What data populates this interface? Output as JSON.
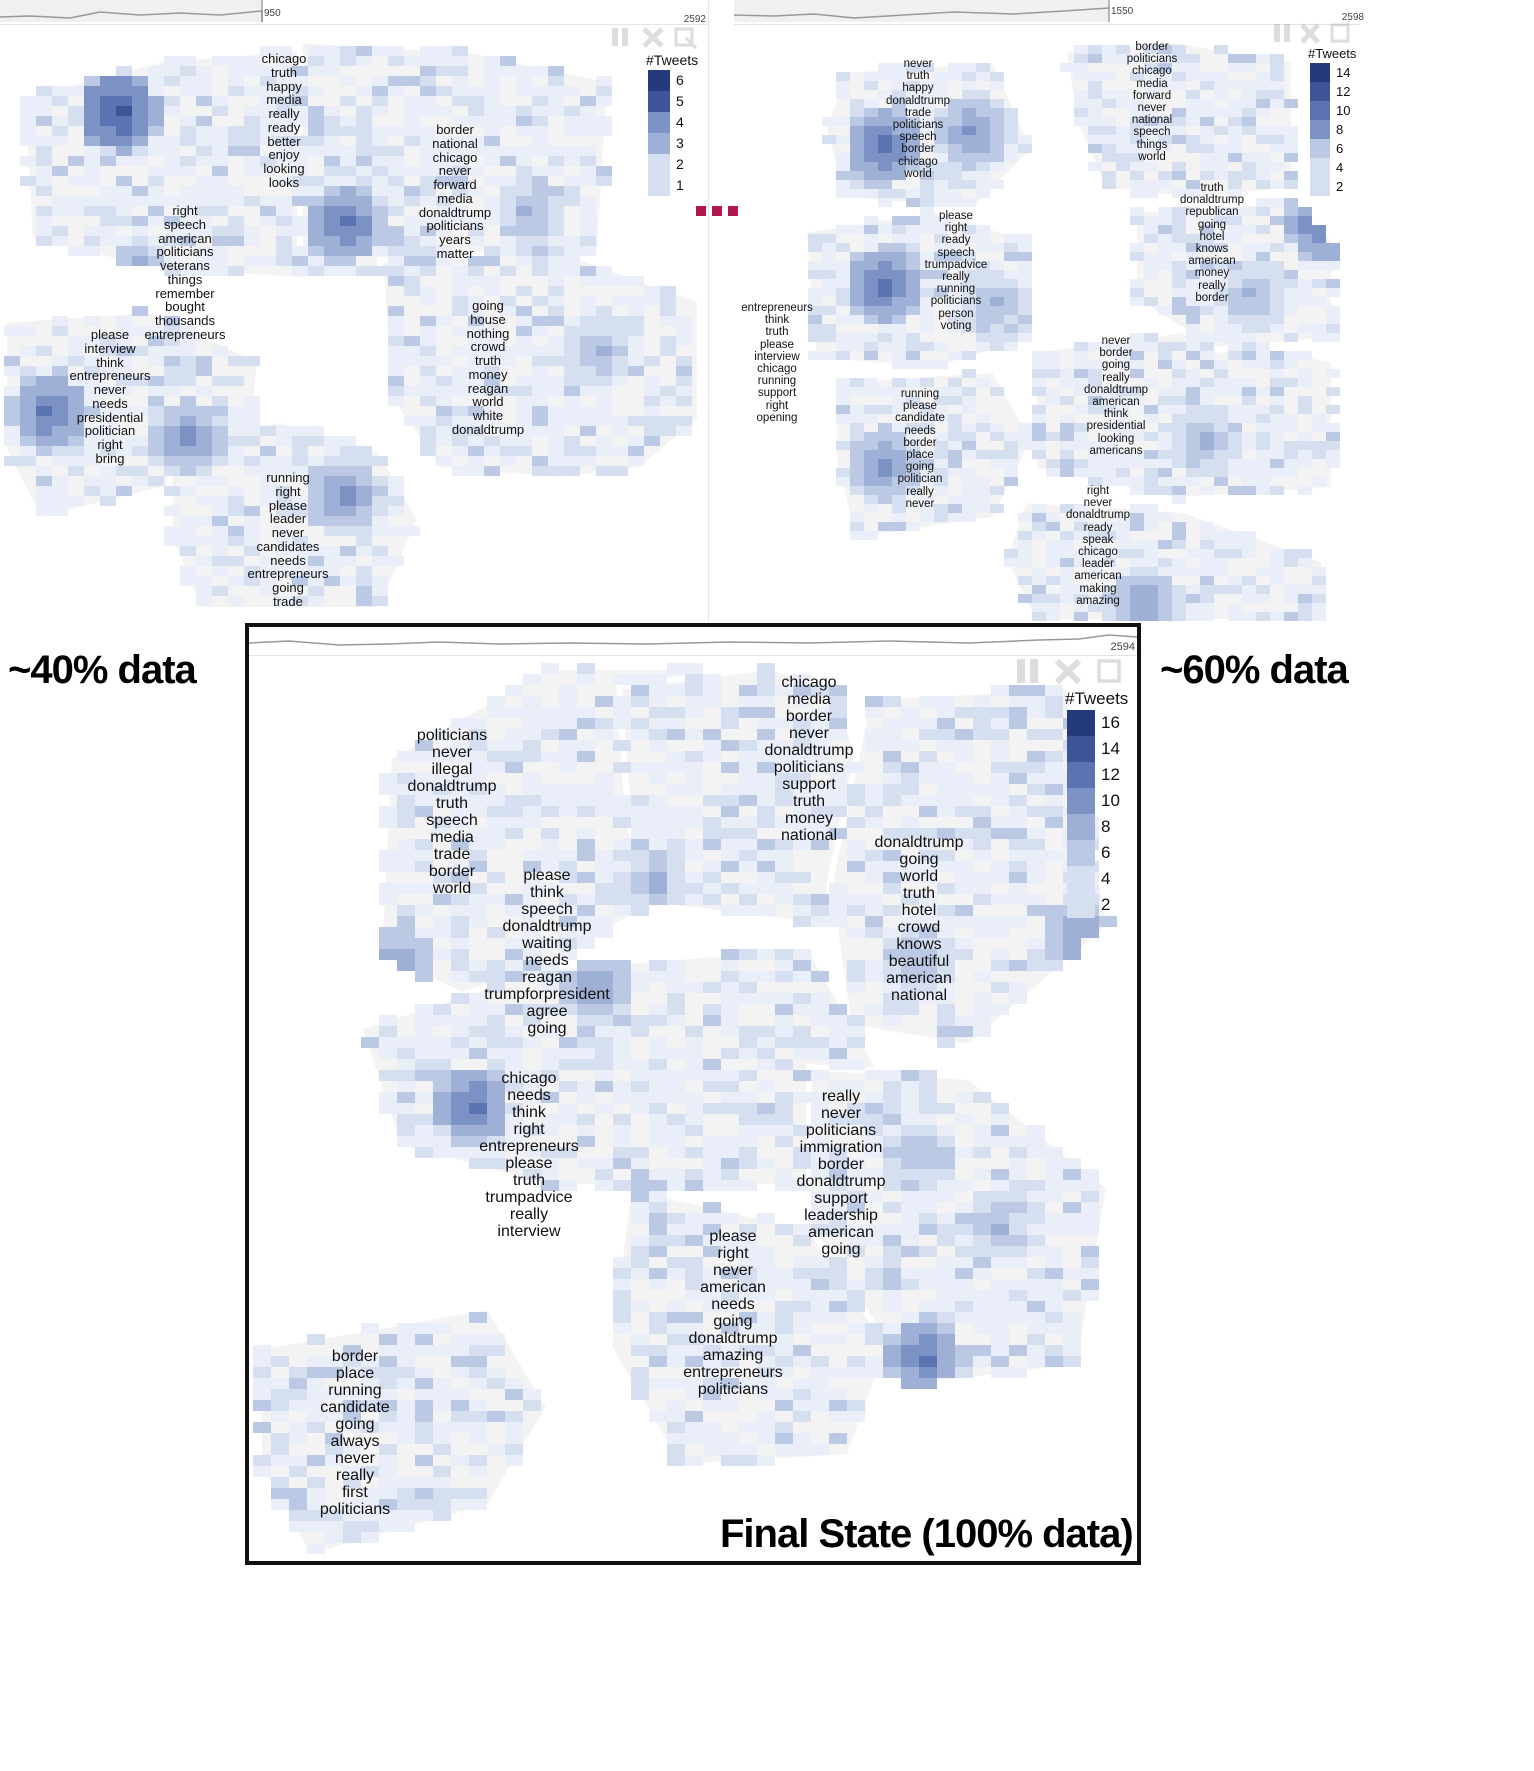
{
  "charts": [
    {
      "id": "p40",
      "timeline": {
        "marker": "950",
        "max": "2592"
      },
      "legend": {
        "title": "#Tweets",
        "values": [
          6,
          5,
          4,
          3,
          2,
          1
        ]
      },
      "clusters": [
        {
          "words": [
            "chicago",
            "truth",
            "happy",
            "media",
            "really",
            "ready",
            "better",
            "enjoy",
            "looking",
            "looks"
          ]
        },
        {
          "words": [
            "border",
            "national",
            "chicago",
            "never",
            "forward",
            "media",
            "donaldtrump",
            "politicians",
            "years",
            "matter"
          ]
        },
        {
          "words": [
            "right",
            "speech",
            "american",
            "politicians",
            "veterans",
            "things",
            "remember",
            "bought",
            "thousands",
            "entrepreneurs"
          ]
        },
        {
          "words": [
            "please",
            "interview",
            "think",
            "entrepreneurs",
            "never",
            "needs",
            "presidential",
            "politician",
            "right",
            "bring"
          ]
        },
        {
          "words": [
            "going",
            "house",
            "nothing",
            "crowd",
            "truth",
            "money",
            "reagan",
            "world",
            "white",
            "donaldtrump"
          ]
        },
        {
          "words": [
            "running",
            "right",
            "please",
            "leader",
            "never",
            "candidates",
            "needs",
            "entrepreneurs",
            "going",
            "trade"
          ]
        }
      ]
    },
    {
      "id": "p60",
      "timeline": {
        "marker": "1550",
        "max": "2598"
      },
      "legend": {
        "title": "#Tweets",
        "values": [
          14,
          12,
          10,
          8,
          6,
          4,
          2
        ]
      },
      "clusters": [
        {
          "words": [
            "never",
            "truth",
            "happy",
            "donaldtrump",
            "trade",
            "politicians",
            "speech",
            "border",
            "chicago",
            "world"
          ]
        },
        {
          "words": [
            "border",
            "politicians",
            "chicago",
            "media",
            "forward",
            "never",
            "national",
            "speech",
            "things",
            "world"
          ]
        },
        {
          "words": [
            "truth",
            "donaldtrump",
            "republican",
            "going",
            "hotel",
            "knows",
            "american",
            "money",
            "really",
            "border"
          ]
        },
        {
          "words": [
            "please",
            "right",
            "ready",
            "speech",
            "trumpadvice",
            "really",
            "running",
            "politicians",
            "person",
            "voting"
          ]
        },
        {
          "words": [
            "entrepreneurs",
            "think",
            "truth",
            "please",
            "interview",
            "chicago",
            "running",
            "support",
            "right",
            "opening"
          ]
        },
        {
          "words": [
            "running",
            "please",
            "candidate",
            "needs",
            "border",
            "place",
            "going",
            "politician",
            "really",
            "never"
          ]
        },
        {
          "words": [
            "never",
            "border",
            "going",
            "really",
            "donaldtrump",
            "american",
            "think",
            "presidential",
            "looking",
            "americans"
          ]
        },
        {
          "words": [
            "right",
            "never",
            "donaldtrump",
            "ready",
            "speak",
            "chicago",
            "leader",
            "american",
            "making",
            "amazing"
          ]
        }
      ]
    },
    {
      "id": "p100",
      "timeline": {
        "marker": "",
        "max": "2594"
      },
      "legend": {
        "title": "#Tweets",
        "values": [
          16,
          14,
          12,
          10,
          8,
          6,
          4,
          2
        ]
      },
      "clusters": [
        {
          "words": [
            "chicago",
            "media",
            "border",
            "never",
            "donaldtrump",
            "politicians",
            "support",
            "truth",
            "money",
            "national"
          ]
        },
        {
          "words": [
            "politicians",
            "never",
            "illegal",
            "donaldtrump",
            "truth",
            "speech",
            "media",
            "trade",
            "border",
            "world"
          ]
        },
        {
          "words": [
            "please",
            "think",
            "speech",
            "donaldtrump",
            "waiting",
            "needs",
            "reagan",
            "trumpforpresident",
            "agree",
            "going"
          ]
        },
        {
          "words": [
            "donaldtrump",
            "going",
            "world",
            "truth",
            "hotel",
            "crowd",
            "knows",
            "beautiful",
            "american",
            "national"
          ]
        },
        {
          "words": [
            "chicago",
            "needs",
            "think",
            "right",
            "entrepreneurs",
            "please",
            "truth",
            "trumpadvice",
            "really",
            "interview"
          ]
        },
        {
          "words": [
            "really",
            "never",
            "politicians",
            "immigration",
            "border",
            "donaldtrump",
            "support",
            "leadership",
            "american",
            "going"
          ]
        },
        {
          "words": [
            "please",
            "right",
            "never",
            "american",
            "needs",
            "going",
            "donaldtrump",
            "amazing",
            "entrepreneurs",
            "politicians"
          ]
        },
        {
          "words": [
            "border",
            "place",
            "running",
            "candidate",
            "going",
            "always",
            "never",
            "really",
            "first",
            "politicians"
          ]
        }
      ]
    }
  ],
  "captions": {
    "p40": "~40% data",
    "p60": "~60% data",
    "p100": "Final State (100% data)"
  }
}
